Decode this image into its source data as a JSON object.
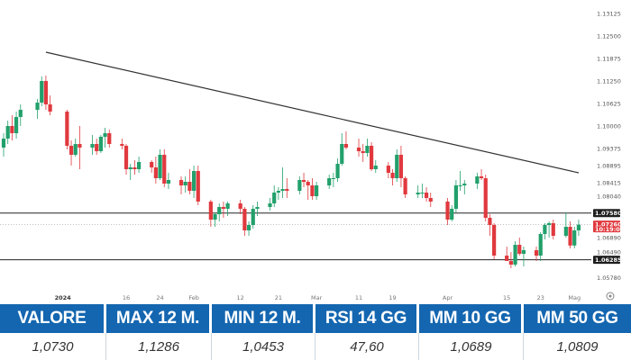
{
  "chart_data": {
    "type": "candlestick",
    "y_ticks": [
      "1.13125",
      "1.12500",
      "1.11875",
      "1.11250",
      "1.10625",
      "1.10000",
      "1.09375",
      "1.08895",
      "1.08415",
      "1.08040",
      "1.07580",
      "1.07260",
      "1.06890",
      "1.06490",
      "1.06285",
      "1.05780"
    ],
    "x_ticks": [
      {
        "label": "2024",
        "bold": true,
        "date": "2024-01-01"
      },
      {
        "label": "16",
        "bold": false,
        "date": "2024-01-16"
      },
      {
        "label": "24",
        "bold": false,
        "date": "2024-01-24"
      },
      {
        "label": "Feb",
        "bold": false,
        "date": "2024-02-01"
      },
      {
        "label": "12",
        "bold": false,
        "date": "2024-02-12"
      },
      {
        "label": "21",
        "bold": false,
        "date": "2024-02-21"
      },
      {
        "label": "Mar",
        "bold": false,
        "date": "2024-03-01"
      },
      {
        "label": "11",
        "bold": false,
        "date": "2024-03-11"
      },
      {
        "label": "19",
        "bold": false,
        "date": "2024-03-19"
      },
      {
        "label": "Apr",
        "bold": false,
        "date": "2024-04-01"
      },
      {
        "label": "15",
        "bold": false,
        "date": "2024-04-15"
      },
      {
        "label": "23",
        "bold": false,
        "date": "2024-04-23"
      },
      {
        "label": "Mag",
        "bold": false,
        "date": "2024-05-01"
      }
    ],
    "ylim": [
      1.0555,
      1.133
    ],
    "xlim": [
      "2023-12-18",
      "2024-05-05"
    ],
    "levels": [
      1.0758,
      1.06285
    ],
    "last_price": 1.0726,
    "last_price_label": "1.07260",
    "countdown": "10:19:00",
    "support_label": "1.06285",
    "resistance_label": "1.07580",
    "trendline": [
      {
        "x": "2023-12-28",
        "y": 1.1205
      },
      {
        "x": "2024-05-02",
        "y": 1.087
      }
    ],
    "colors": {
      "up": "#22a06b",
      "down": "#e0393e",
      "trend": "#333333",
      "level": "#222222"
    },
    "grid": false,
    "candles": [
      {
        "d": "2023-12-18",
        "o": 1.094,
        "h": 1.098,
        "l": 1.0915,
        "c": 1.0965
      },
      {
        "d": "2023-12-19",
        "o": 1.0965,
        "h": 1.1015,
        "l": 1.095,
        "c": 1.1
      },
      {
        "d": "2023-12-20",
        "o": 1.1,
        "h": 1.103,
        "l": 1.096,
        "c": 1.098
      },
      {
        "d": "2023-12-21",
        "o": 1.098,
        "h": 1.104,
        "l": 1.0965,
        "c": 1.1025
      },
      {
        "d": "2023-12-22",
        "o": 1.1025,
        "h": 1.106,
        "l": 1.1,
        "c": 1.1045
      },
      {
        "d": "2023-12-26",
        "o": 1.1045,
        "h": 1.1075,
        "l": 1.102,
        "c": 1.1065
      },
      {
        "d": "2023-12-27",
        "o": 1.1065,
        "h": 1.1138,
        "l": 1.1055,
        "c": 1.1125
      },
      {
        "d": "2023-12-28",
        "o": 1.1125,
        "h": 1.114,
        "l": 1.1045,
        "c": 1.106
      },
      {
        "d": "2023-12-29",
        "o": 1.106,
        "h": 1.1085,
        "l": 1.103,
        "c": 1.104
      },
      {
        "d": "2024-01-02",
        "o": 1.104,
        "h": 1.1045,
        "l": 1.0935,
        "c": 1.0945
      },
      {
        "d": "2024-01-03",
        "o": 1.0945,
        "h": 1.096,
        "l": 1.089,
        "c": 1.092
      },
      {
        "d": "2024-01-04",
        "o": 1.092,
        "h": 1.0965,
        "l": 1.0915,
        "c": 1.095
      },
      {
        "d": "2024-01-05",
        "o": 1.095,
        "h": 1.1,
        "l": 1.088,
        "c": 1.094
      },
      {
        "d": "2024-01-08",
        "o": 1.094,
        "h": 1.0975,
        "l": 1.092,
        "c": 1.095
      },
      {
        "d": "2024-01-09",
        "o": 1.095,
        "h": 1.0965,
        "l": 1.092,
        "c": 1.093
      },
      {
        "d": "2024-01-10",
        "o": 1.093,
        "h": 1.0975,
        "l": 1.0925,
        "c": 1.097
      },
      {
        "d": "2024-01-11",
        "o": 1.097,
        "h": 1.0995,
        "l": 1.094,
        "c": 1.098
      },
      {
        "d": "2024-01-12",
        "o": 1.098,
        "h": 1.099,
        "l": 1.094,
        "c": 1.095
      },
      {
        "d": "2024-01-15",
        "o": 1.095,
        "h": 1.0965,
        "l": 1.0935,
        "c": 1.0945
      },
      {
        "d": "2024-01-16",
        "o": 1.0945,
        "h": 1.095,
        "l": 1.0865,
        "c": 1.088
      },
      {
        "d": "2024-01-17",
        "o": 1.088,
        "h": 1.0895,
        "l": 1.085,
        "c": 1.0885
      },
      {
        "d": "2024-01-18",
        "o": 1.0885,
        "h": 1.0905,
        "l": 1.0865,
        "c": 1.088
      },
      {
        "d": "2024-01-19",
        "o": 1.088,
        "h": 1.0915,
        "l": 1.087,
        "c": 1.09
      },
      {
        "d": "2024-01-22",
        "o": 1.09,
        "h": 1.0905,
        "l": 1.087,
        "c": 1.0885
      },
      {
        "d": "2024-01-23",
        "o": 1.0885,
        "h": 1.0915,
        "l": 1.084,
        "c": 1.0855
      },
      {
        "d": "2024-01-24",
        "o": 1.0855,
        "h": 1.0935,
        "l": 1.085,
        "c": 1.092
      },
      {
        "d": "2024-01-25",
        "o": 1.092,
        "h": 1.0935,
        "l": 1.083,
        "c": 1.084
      },
      {
        "d": "2024-01-26",
        "o": 1.084,
        "h": 1.087,
        "l": 1.0825,
        "c": 1.085
      },
      {
        "d": "2024-01-29",
        "o": 1.085,
        "h": 1.086,
        "l": 1.081,
        "c": 1.0835
      },
      {
        "d": "2024-01-30",
        "o": 1.0835,
        "h": 1.086,
        "l": 1.0815,
        "c": 1.0845
      },
      {
        "d": "2024-01-31",
        "o": 1.0845,
        "h": 1.088,
        "l": 1.081,
        "c": 1.082
      },
      {
        "d": "2024-02-01",
        "o": 1.082,
        "h": 1.089,
        "l": 1.08,
        "c": 1.0875
      },
      {
        "d": "2024-02-02",
        "o": 1.0875,
        "h": 1.089,
        "l": 1.078,
        "c": 1.079
      },
      {
        "d": "2024-02-05",
        "o": 1.079,
        "h": 1.0795,
        "l": 1.072,
        "c": 1.074
      },
      {
        "d": "2024-02-06",
        "o": 1.074,
        "h": 1.076,
        "l": 1.072,
        "c": 1.0755
      },
      {
        "d": "2024-02-07",
        "o": 1.0755,
        "h": 1.0785,
        "l": 1.0735,
        "c": 1.0775
      },
      {
        "d": "2024-02-08",
        "o": 1.0775,
        "h": 1.079,
        "l": 1.0745,
        "c": 1.077
      },
      {
        "d": "2024-02-09",
        "o": 1.077,
        "h": 1.079,
        "l": 1.075,
        "c": 1.0785
      },
      {
        "d": "2024-02-12",
        "o": 1.0785,
        "h": 1.0795,
        "l": 1.0755,
        "c": 1.077
      },
      {
        "d": "2024-02-13",
        "o": 1.077,
        "h": 1.0775,
        "l": 1.0695,
        "c": 1.071
      },
      {
        "d": "2024-02-14",
        "o": 1.071,
        "h": 1.0735,
        "l": 1.0695,
        "c": 1.0725
      },
      {
        "d": "2024-02-15",
        "o": 1.0725,
        "h": 1.078,
        "l": 1.0715,
        "c": 1.077
      },
      {
        "d": "2024-02-16",
        "o": 1.077,
        "h": 1.079,
        "l": 1.075,
        "c": 1.0775
      },
      {
        "d": "2024-02-19",
        "o": 1.0775,
        "h": 1.08,
        "l": 1.0765,
        "c": 1.0785
      },
      {
        "d": "2024-02-20",
        "o": 1.0785,
        "h": 1.0835,
        "l": 1.0775,
        "c": 1.0815
      },
      {
        "d": "2024-02-21",
        "o": 1.0815,
        "h": 1.083,
        "l": 1.0795,
        "c": 1.082
      },
      {
        "d": "2024-02-22",
        "o": 1.082,
        "h": 1.0885,
        "l": 1.08,
        "c": 1.0825
      },
      {
        "d": "2024-02-23",
        "o": 1.0825,
        "h": 1.0855,
        "l": 1.08,
        "c": 1.082
      },
      {
        "d": "2024-02-26",
        "o": 1.082,
        "h": 1.086,
        "l": 1.081,
        "c": 1.085
      },
      {
        "d": "2024-02-27",
        "o": 1.085,
        "h": 1.087,
        "l": 1.083,
        "c": 1.0845
      },
      {
        "d": "2024-02-28",
        "o": 1.0845,
        "h": 1.085,
        "l": 1.0795,
        "c": 1.0835
      },
      {
        "d": "2024-02-29",
        "o": 1.0835,
        "h": 1.0855,
        "l": 1.0795,
        "c": 1.0805
      },
      {
        "d": "2024-03-01",
        "o": 1.0805,
        "h": 1.0845,
        "l": 1.0795,
        "c": 1.0835
      },
      {
        "d": "2024-03-04",
        "o": 1.0835,
        "h": 1.0865,
        "l": 1.0825,
        "c": 1.0855
      },
      {
        "d": "2024-03-05",
        "o": 1.0855,
        "h": 1.087,
        "l": 1.083,
        "c": 1.0855
      },
      {
        "d": "2024-03-06",
        "o": 1.0855,
        "h": 1.091,
        "l": 1.0845,
        "c": 1.0895
      },
      {
        "d": "2024-03-07",
        "o": 1.0895,
        "h": 1.098,
        "l": 1.089,
        "c": 1.095
      },
      {
        "d": "2024-03-08",
        "o": 1.095,
        "h": 1.0985,
        "l": 1.0935,
        "c": 1.094
      },
      {
        "d": "2024-03-11",
        "o": 1.094,
        "h": 1.0965,
        "l": 1.0915,
        "c": 1.093
      },
      {
        "d": "2024-03-12",
        "o": 1.093,
        "h": 1.095,
        "l": 1.09,
        "c": 1.0925
      },
      {
        "d": "2024-03-13",
        "o": 1.0925,
        "h": 1.0965,
        "l": 1.0915,
        "c": 1.0945
      },
      {
        "d": "2024-03-14",
        "o": 1.0945,
        "h": 1.0955,
        "l": 1.0875,
        "c": 1.088
      },
      {
        "d": "2024-03-15",
        "o": 1.088,
        "h": 1.0905,
        "l": 1.087,
        "c": 1.089
      },
      {
        "d": "2024-03-18",
        "o": 1.089,
        "h": 1.09,
        "l": 1.0855,
        "c": 1.087
      },
      {
        "d": "2024-03-19",
        "o": 1.087,
        "h": 1.088,
        "l": 1.0835,
        "c": 1.0855
      },
      {
        "d": "2024-03-20",
        "o": 1.0855,
        "h": 1.0935,
        "l": 1.0845,
        "c": 1.092
      },
      {
        "d": "2024-03-21",
        "o": 1.092,
        "h": 1.0945,
        "l": 1.083,
        "c": 1.0855
      },
      {
        "d": "2024-03-22",
        "o": 1.0855,
        "h": 1.086,
        "l": 1.08,
        "c": 1.081
      },
      {
        "d": "2024-03-25",
        "o": 1.081,
        "h": 1.0835,
        "l": 1.08,
        "c": 1.0815
      },
      {
        "d": "2024-03-26",
        "o": 1.0815,
        "h": 1.084,
        "l": 1.08,
        "c": 1.0815
      },
      {
        "d": "2024-03-27",
        "o": 1.0815,
        "h": 1.083,
        "l": 1.079,
        "c": 1.08
      },
      {
        "d": "2024-03-28",
        "o": 1.08,
        "h": 1.0815,
        "l": 1.0775,
        "c": 1.079
      },
      {
        "d": "2024-04-01",
        "o": 1.079,
        "h": 1.08,
        "l": 1.0725,
        "c": 1.074
      },
      {
        "d": "2024-04-02",
        "o": 1.074,
        "h": 1.078,
        "l": 1.0735,
        "c": 1.077
      },
      {
        "d": "2024-04-03",
        "o": 1.077,
        "h": 1.085,
        "l": 1.076,
        "c": 1.0835
      },
      {
        "d": "2024-04-04",
        "o": 1.0835,
        "h": 1.0875,
        "l": 1.082,
        "c": 1.0835
      },
      {
        "d": "2024-04-05",
        "o": 1.0835,
        "h": 1.085,
        "l": 1.081,
        "c": 1.084
      },
      {
        "d": "2024-04-08",
        "o": 1.084,
        "h": 1.087,
        "l": 1.0825,
        "c": 1.086
      },
      {
        "d": "2024-04-09",
        "o": 1.086,
        "h": 1.088,
        "l": 1.085,
        "c": 1.0855
      },
      {
        "d": "2024-04-10",
        "o": 1.0855,
        "h": 1.0865,
        "l": 1.0735,
        "c": 1.0745
      },
      {
        "d": "2024-04-11",
        "o": 1.0745,
        "h": 1.0755,
        "l": 1.0695,
        "c": 1.0725
      },
      {
        "d": "2024-04-12",
        "o": 1.0725,
        "h": 1.073,
        "l": 1.063,
        "c": 1.064
      },
      {
        "d": "2024-04-15",
        "o": 1.064,
        "h": 1.0665,
        "l": 1.0625,
        "c": 1.0625
      },
      {
        "d": "2024-04-16",
        "o": 1.0625,
        "h": 1.065,
        "l": 1.0605,
        "c": 1.0615
      },
      {
        "d": "2024-04-17",
        "o": 1.0615,
        "h": 1.068,
        "l": 1.061,
        "c": 1.067
      },
      {
        "d": "2024-04-18",
        "o": 1.067,
        "h": 1.069,
        "l": 1.064,
        "c": 1.0645
      },
      {
        "d": "2024-04-19",
        "o": 1.0645,
        "h": 1.0665,
        "l": 1.061,
        "c": 1.0655
      },
      {
        "d": "2024-04-22",
        "o": 1.0655,
        "h": 1.0665,
        "l": 1.0625,
        "c": 1.064
      },
      {
        "d": "2024-04-23",
        "o": 1.064,
        "h": 1.0705,
        "l": 1.0625,
        "c": 1.07
      },
      {
        "d": "2024-04-24",
        "o": 1.07,
        "h": 1.073,
        "l": 1.0685,
        "c": 1.0725
      },
      {
        "d": "2024-04-25",
        "o": 1.0725,
        "h": 1.0735,
        "l": 1.069,
        "c": 1.073
      },
      {
        "d": "2024-04-26",
        "o": 1.073,
        "h": 1.074,
        "l": 1.0685,
        "c": 1.0695
      },
      {
        "d": "2024-04-29",
        "o": 1.0695,
        "h": 1.076,
        "l": 1.069,
        "c": 1.072
      },
      {
        "d": "2024-04-30",
        "o": 1.072,
        "h": 1.0735,
        "l": 1.066,
        "c": 1.0668
      },
      {
        "d": "2024-05-01",
        "o": 1.0668,
        "h": 1.072,
        "l": 1.066,
        "c": 1.071
      },
      {
        "d": "2024-05-02",
        "o": 1.071,
        "h": 1.074,
        "l": 1.0695,
        "c": 1.0726
      }
    ]
  },
  "stats": {
    "headers": [
      "VALORE",
      "MAX 12 M.",
      "MIN 12 M.",
      "RSI 14 GG",
      "MM 10 GG",
      "MM 50 GG"
    ],
    "values": [
      "1,0730",
      "1,1286",
      "1,0453",
      "47,60",
      "1,0689",
      "1,0809"
    ],
    "header_color": "#1466b0"
  }
}
